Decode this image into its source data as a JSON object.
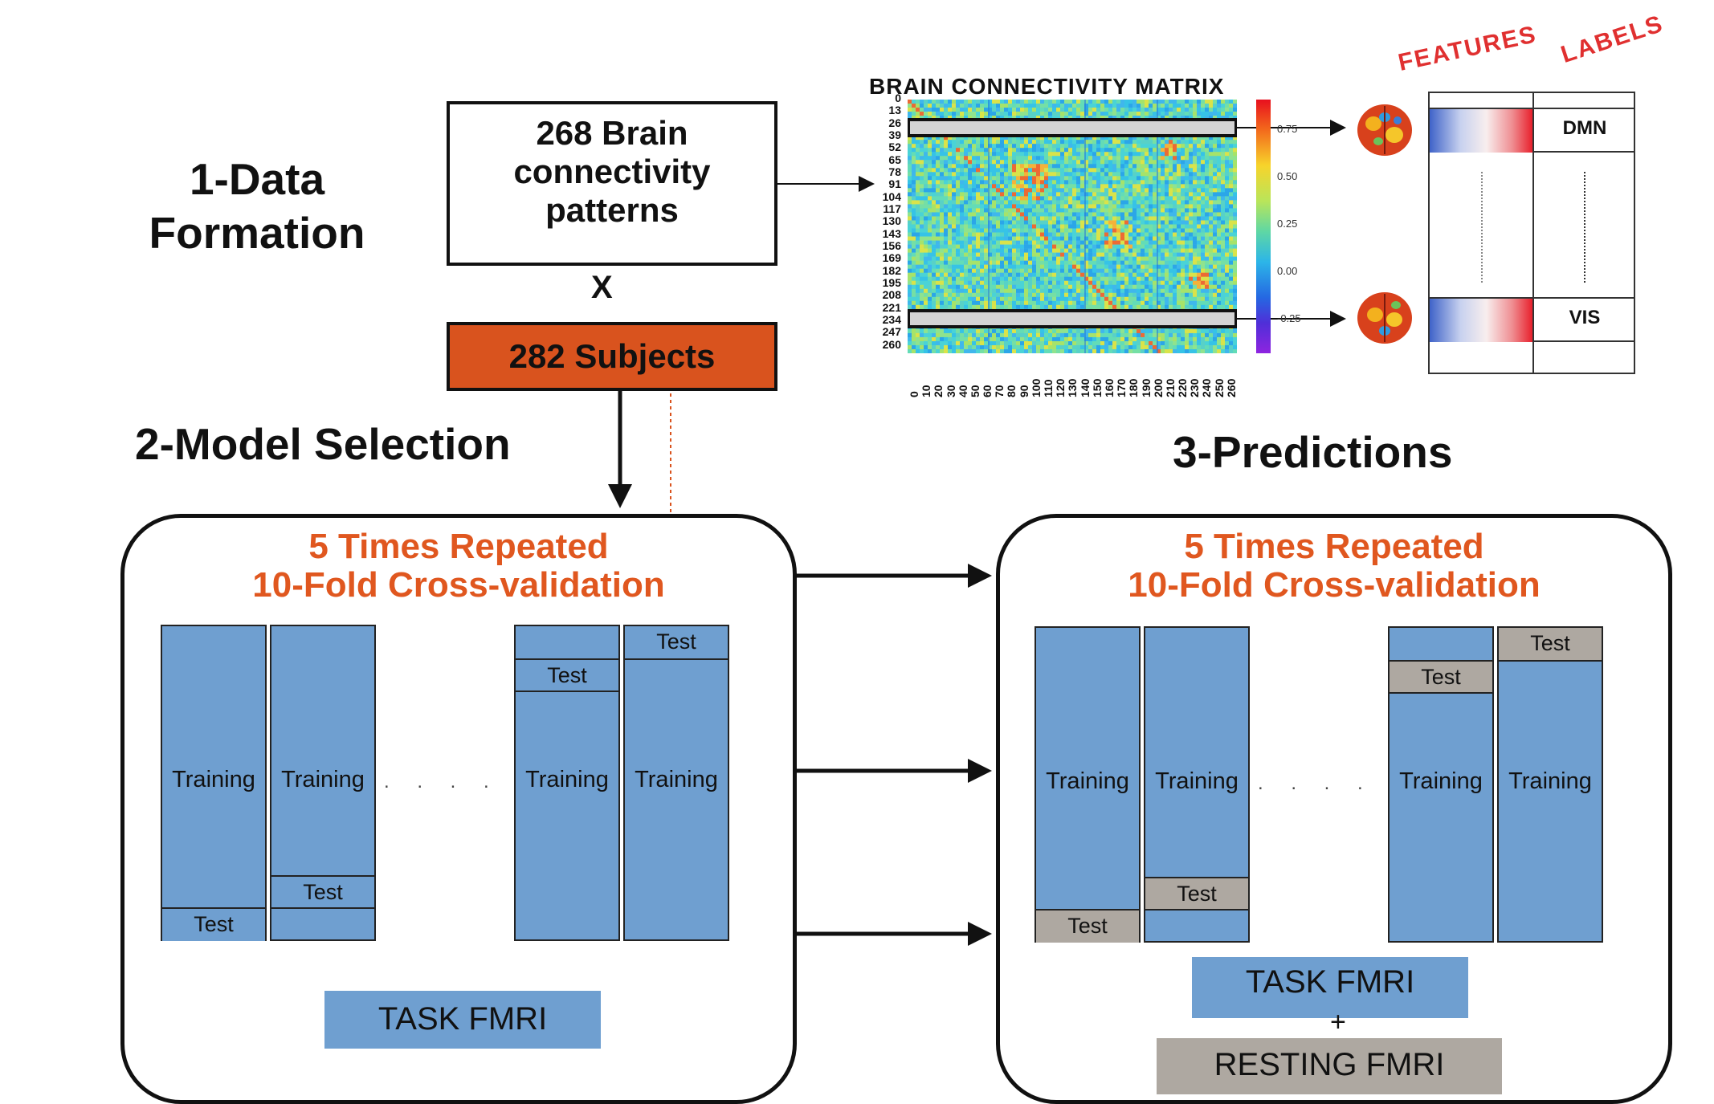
{
  "stage1": {
    "title_line1": "1-Data",
    "title_line2": "Formation"
  },
  "stage2": {
    "title": "2-Model Selection"
  },
  "stage3": {
    "title": "3-Predictions"
  },
  "patterns_box": {
    "line1": "268 Brain",
    "line2": "connectivity",
    "line3": "patterns"
  },
  "times_symbol": "X",
  "subjects_box": {
    "label": "282 Subjects"
  },
  "matrix": {
    "title": "BRAIN CONNECTIVITY MATRIX",
    "y_ticks": [
      "0",
      "13",
      "26",
      "39",
      "52",
      "65",
      "78",
      "91",
      "104",
      "117",
      "130",
      "143",
      "156",
      "169",
      "182",
      "195",
      "208",
      "221",
      "234",
      "247",
      "260"
    ],
    "x_ticks": [
      "0",
      "10",
      "20",
      "30",
      "40",
      "50",
      "60",
      "70",
      "80",
      "90",
      "100",
      "110",
      "120",
      "130",
      "140",
      "150",
      "160",
      "170",
      "180",
      "190",
      "200",
      "210",
      "220",
      "230",
      "240",
      "250",
      "260"
    ],
    "colorbar_ticks": [
      "0.75",
      "0.50",
      "0.25",
      "0.00",
      "-0.25"
    ]
  },
  "feature_labels": {
    "features_header": "FEATURES",
    "labels_header": "LABELS",
    "label_top": "DMN",
    "label_bottom": "VIS"
  },
  "cv_left": {
    "title_line1": "5 Times Repeated",
    "title_line2": "10-Fold Cross-validation",
    "training_label": "Training",
    "test_label": "Test",
    "ellipsis": ". . . . .",
    "task_label": "TASK FMRI"
  },
  "cv_right": {
    "title_line1": "5 Times Repeated",
    "title_line2": "10-Fold Cross-validation",
    "training_label": "Training",
    "test_label": "Test",
    "ellipsis": ". . . . .",
    "task_label": "TASK FMRI",
    "plus": "+",
    "resting_label": "RESTING FMRI"
  },
  "colors": {
    "fold_blue": "#6f9fd0",
    "test_grey": "#aea8a1",
    "subjects_orange": "#d9531e",
    "cv_title_orange": "#e0571f",
    "handwritten_red": "#e03030"
  }
}
